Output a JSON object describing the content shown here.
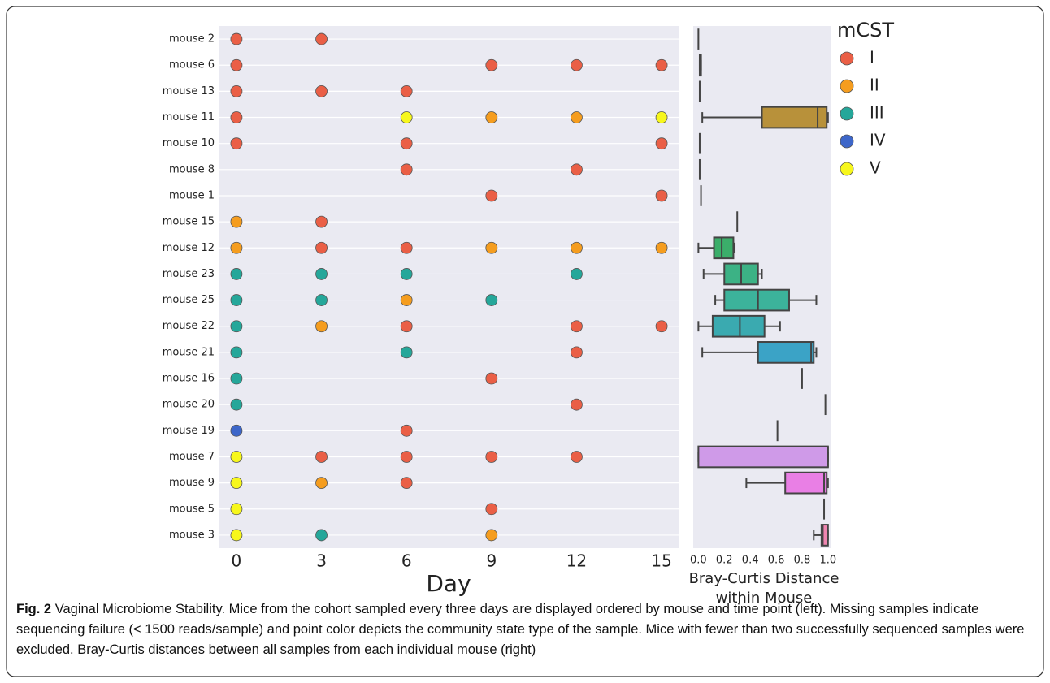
{
  "chart_data": [
    {
      "type": "dot",
      "xlabel": "Day",
      "xlim": [
        -0.6,
        15.6
      ],
      "xticks": [
        0,
        3,
        6,
        9,
        12,
        15
      ],
      "grid": true,
      "legend_title": "mCST",
      "legend": "upper right",
      "series": [
        {
          "name": "I",
          "color": "#ea5f46"
        },
        {
          "name": "II",
          "color": "#f59d1f"
        },
        {
          "name": "III",
          "color": "#25a79a"
        },
        {
          "name": "IV",
          "color": "#3d66c9"
        },
        {
          "name": "V",
          "color": "#f7f71c"
        }
      ],
      "rows": [
        {
          "category": "mouse 2",
          "samples": [
            {
              "day": 0,
              "mcst": "I"
            },
            {
              "day": 3,
              "mcst": "I"
            }
          ]
        },
        {
          "category": "mouse 6",
          "samples": [
            {
              "day": 0,
              "mcst": "I"
            },
            {
              "day": 9,
              "mcst": "I"
            },
            {
              "day": 12,
              "mcst": "I"
            },
            {
              "day": 15,
              "mcst": "I"
            }
          ]
        },
        {
          "category": "mouse 13",
          "samples": [
            {
              "day": 0,
              "mcst": "I"
            },
            {
              "day": 3,
              "mcst": "I"
            },
            {
              "day": 6,
              "mcst": "I"
            }
          ]
        },
        {
          "category": "mouse 11",
          "samples": [
            {
              "day": 0,
              "mcst": "I"
            },
            {
              "day": 6,
              "mcst": "V"
            },
            {
              "day": 9,
              "mcst": "II"
            },
            {
              "day": 12,
              "mcst": "II"
            },
            {
              "day": 15,
              "mcst": "V"
            }
          ]
        },
        {
          "category": "mouse 10",
          "samples": [
            {
              "day": 0,
              "mcst": "I"
            },
            {
              "day": 6,
              "mcst": "I"
            },
            {
              "day": 15,
              "mcst": "I"
            }
          ]
        },
        {
          "category": "mouse 8",
          "samples": [
            {
              "day": 6,
              "mcst": "I"
            },
            {
              "day": 12,
              "mcst": "I"
            }
          ]
        },
        {
          "category": "mouse 1",
          "samples": [
            {
              "day": 9,
              "mcst": "I"
            },
            {
              "day": 15,
              "mcst": "I"
            }
          ]
        },
        {
          "category": "mouse 15",
          "samples": [
            {
              "day": 0,
              "mcst": "II"
            },
            {
              "day": 3,
              "mcst": "I"
            }
          ]
        },
        {
          "category": "mouse 12",
          "samples": [
            {
              "day": 0,
              "mcst": "II"
            },
            {
              "day": 3,
              "mcst": "I"
            },
            {
              "day": 6,
              "mcst": "I"
            },
            {
              "day": 9,
              "mcst": "II"
            },
            {
              "day": 12,
              "mcst": "II"
            },
            {
              "day": 15,
              "mcst": "II"
            }
          ]
        },
        {
          "category": "mouse 23",
          "samples": [
            {
              "day": 0,
              "mcst": "III"
            },
            {
              "day": 3,
              "mcst": "III"
            },
            {
              "day": 6,
              "mcst": "III"
            },
            {
              "day": 12,
              "mcst": "III"
            }
          ]
        },
        {
          "category": "mouse 25",
          "samples": [
            {
              "day": 0,
              "mcst": "III"
            },
            {
              "day": 3,
              "mcst": "III"
            },
            {
              "day": 6,
              "mcst": "II"
            },
            {
              "day": 9,
              "mcst": "III"
            }
          ]
        },
        {
          "category": "mouse 22",
          "samples": [
            {
              "day": 0,
              "mcst": "III"
            },
            {
              "day": 3,
              "mcst": "II"
            },
            {
              "day": 6,
              "mcst": "I"
            },
            {
              "day": 12,
              "mcst": "I"
            },
            {
              "day": 15,
              "mcst": "I"
            }
          ]
        },
        {
          "category": "mouse 21",
          "samples": [
            {
              "day": 0,
              "mcst": "III"
            },
            {
              "day": 6,
              "mcst": "III"
            },
            {
              "day": 12,
              "mcst": "I"
            }
          ]
        },
        {
          "category": "mouse 16",
          "samples": [
            {
              "day": 0,
              "mcst": "III"
            },
            {
              "day": 9,
              "mcst": "I"
            }
          ]
        },
        {
          "category": "mouse 20",
          "samples": [
            {
              "day": 0,
              "mcst": "III"
            },
            {
              "day": 12,
              "mcst": "I"
            }
          ]
        },
        {
          "category": "mouse 19",
          "samples": [
            {
              "day": 0,
              "mcst": "IV"
            },
            {
              "day": 6,
              "mcst": "I"
            }
          ]
        },
        {
          "category": "mouse 7",
          "samples": [
            {
              "day": 0,
              "mcst": "V"
            },
            {
              "day": 3,
              "mcst": "I"
            },
            {
              "day": 6,
              "mcst": "I"
            },
            {
              "day": 9,
              "mcst": "I"
            },
            {
              "day": 12,
              "mcst": "I"
            }
          ]
        },
        {
          "category": "mouse 9",
          "samples": [
            {
              "day": 0,
              "mcst": "V"
            },
            {
              "day": 3,
              "mcst": "II"
            },
            {
              "day": 6,
              "mcst": "I"
            }
          ]
        },
        {
          "category": "mouse 5",
          "samples": [
            {
              "day": 0,
              "mcst": "V"
            },
            {
              "day": 9,
              "mcst": "I"
            }
          ]
        },
        {
          "category": "mouse 3",
          "samples": [
            {
              "day": 0,
              "mcst": "V"
            },
            {
              "day": 3,
              "mcst": "III"
            },
            {
              "day": 9,
              "mcst": "II"
            }
          ]
        }
      ]
    },
    {
      "type": "box",
      "xlabel": [
        "Bray-Curtis Distance",
        "within Mouse"
      ],
      "xlim": [
        -0.04,
        1.02
      ],
      "xticks": [
        {
          "value": 0,
          "label": "0.0"
        },
        0.2,
        0.4,
        0.6,
        0.8,
        {
          "value": 1,
          "label": "1.0"
        }
      ],
      "boxes": [
        {
          "value": 0.0
        },
        {
          "min": 0.01,
          "q1": 0.01,
          "median": 0.02,
          "q3": 0.02,
          "max": 0.02,
          "color": "#ea5f46"
        },
        {
          "value": 0.01
        },
        {
          "min": 0.03,
          "q1": 0.49,
          "median": 0.92,
          "q3": 0.99,
          "max": 1.0,
          "color": "#b8913a"
        },
        {
          "value": 0.01
        },
        {
          "value": 0.01
        },
        {
          "value": 0.02
        },
        {
          "value": 0.3
        },
        {
          "min": 0.0,
          "q1": 0.12,
          "median": 0.18,
          "q3": 0.27,
          "max": 0.28,
          "color": "#3bae6a"
        },
        {
          "min": 0.04,
          "q1": 0.2,
          "median": 0.33,
          "q3": 0.46,
          "max": 0.49,
          "color": "#3cb285"
        },
        {
          "min": 0.13,
          "q1": 0.2,
          "median": 0.46,
          "q3": 0.7,
          "max": 0.91,
          "color": "#3cb39b"
        },
        {
          "min": 0.0,
          "q1": 0.11,
          "median": 0.32,
          "q3": 0.51,
          "max": 0.63,
          "color": "#3aaab0"
        },
        {
          "min": 0.03,
          "q1": 0.46,
          "median": 0.87,
          "q3": 0.89,
          "max": 0.91,
          "color": "#3ba3c6"
        },
        {
          "value": 0.8
        },
        {
          "value": 0.98
        },
        {
          "value": 0.61
        },
        {
          "min": 0.0,
          "q1": 0.0,
          "median": 1.0,
          "q3": 1.0,
          "max": 1.0,
          "color": "#cf9ae8"
        },
        {
          "min": 0.37,
          "q1": 0.67,
          "median": 0.97,
          "q3": 0.99,
          "max": 1.0,
          "color": "#e97fe5"
        },
        {
          "value": 0.97
        },
        {
          "min": 0.89,
          "q1": 0.95,
          "median": 0.96,
          "q3": 1.0,
          "max": 1.0,
          "color": "#ef85b0"
        }
      ]
    }
  ],
  "caption": {
    "label": "Fig. 2",
    "text": "Vaginal Microbiome Stability. Mice from the cohort sampled every three days are displayed ordered by mouse and time point (left). Missing samples indicate sequencing failure (< 1500 reads/sample) and point color depicts the community state type of the sample. Mice with fewer than two successfully sequenced samples were excluded. Bray-Curtis distances between all samples from each individual mouse (right)"
  }
}
